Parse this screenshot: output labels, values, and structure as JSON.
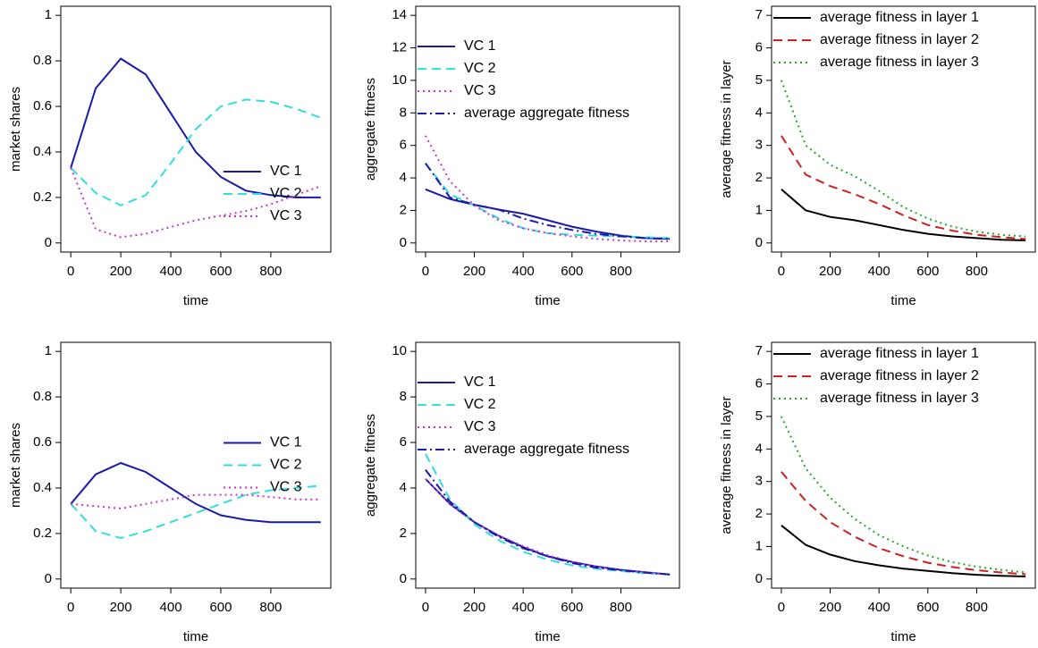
{
  "chart_data": [
    {
      "type": "line",
      "ylabel": "market shares",
      "xlabel": "time",
      "legend": "bottomright",
      "x": [
        0,
        100,
        200,
        300,
        400,
        500,
        600,
        700,
        800,
        900,
        1000
      ],
      "xlim": [
        -40,
        1040
      ],
      "xticks": [
        0,
        200,
        400,
        600,
        800
      ],
      "ylim": [
        -0.04,
        1.04
      ],
      "yticks": [
        0.0,
        0.2,
        0.4,
        0.6,
        0.8,
        1.0
      ],
      "series": [
        {
          "name": "VC 1",
          "color": "#1a1aaa",
          "linestyle": "solid",
          "values": [
            0.33,
            0.68,
            0.81,
            0.74,
            0.57,
            0.4,
            0.29,
            0.23,
            0.21,
            0.2,
            0.2
          ]
        },
        {
          "name": "VC 2",
          "color": "#33dddd",
          "linestyle": "dashed",
          "values": [
            0.33,
            0.22,
            0.165,
            0.21,
            0.35,
            0.5,
            0.6,
            0.63,
            0.62,
            0.59,
            0.55
          ]
        },
        {
          "name": "VC 3",
          "color": "#cc33cc",
          "linestyle": "dotted",
          "values": [
            0.33,
            0.06,
            0.025,
            0.04,
            0.07,
            0.1,
            0.12,
            0.14,
            0.17,
            0.21,
            0.25
          ]
        }
      ]
    },
    {
      "type": "line",
      "ylabel": "aggregate fitness",
      "xlabel": "time",
      "legend": "topleft",
      "x": [
        0,
        100,
        200,
        300,
        400,
        500,
        600,
        700,
        800,
        900,
        1000
      ],
      "xlim": [
        -40,
        1040
      ],
      "xticks": [
        0,
        200,
        400,
        600,
        800
      ],
      "ylim": [
        -0.56,
        14.56
      ],
      "yticks": [
        0,
        2,
        4,
        6,
        8,
        10,
        12,
        14
      ],
      "series": [
        {
          "name": "VC 1",
          "color": "#1a1aaa",
          "linestyle": "solid",
          "values": [
            3.3,
            2.7,
            2.35,
            2.05,
            1.8,
            1.4,
            1.0,
            0.7,
            0.45,
            0.3,
            0.25
          ]
        },
        {
          "name": "VC 2",
          "color": "#33dddd",
          "linestyle": "dashed",
          "values": [
            4.9,
            3.0,
            2.3,
            1.5,
            0.9,
            0.6,
            0.5,
            0.45,
            0.4,
            0.35,
            0.3
          ]
        },
        {
          "name": "VC 3",
          "color": "#cc33cc",
          "linestyle": "dotted",
          "values": [
            6.6,
            3.8,
            2.3,
            1.4,
            0.9,
            0.6,
            0.4,
            0.25,
            0.15,
            0.1,
            0.1
          ]
        },
        {
          "name": "average aggregate fitness",
          "color": "#1a1aaa",
          "linestyle": "dashdot",
          "values": [
            4.9,
            2.8,
            2.35,
            2.05,
            1.5,
            1.1,
            0.8,
            0.55,
            0.4,
            0.3,
            0.25
          ]
        }
      ]
    },
    {
      "type": "line",
      "ylabel": "average fitness in layer",
      "xlabel": "time",
      "legend": "topleft",
      "x": [
        0,
        100,
        200,
        300,
        400,
        500,
        600,
        700,
        800,
        900,
        1000
      ],
      "xlim": [
        -40,
        1040
      ],
      "xticks": [
        0,
        200,
        400,
        600,
        800
      ],
      "ylim": [
        -0.28,
        7.28
      ],
      "yticks": [
        0,
        1,
        2,
        3,
        4,
        5,
        6,
        7
      ],
      "series": [
        {
          "name": "average fitness in layer 1",
          "color": "#000000",
          "linestyle": "solid",
          "values": [
            1.65,
            1.0,
            0.8,
            0.7,
            0.55,
            0.4,
            0.28,
            0.2,
            0.15,
            0.1,
            0.08
          ]
        },
        {
          "name": "average fitness in layer 2",
          "color": "#cc2222",
          "linestyle": "dashed",
          "values": [
            3.3,
            2.1,
            1.75,
            1.5,
            1.2,
            0.85,
            0.55,
            0.38,
            0.25,
            0.18,
            0.12
          ]
        },
        {
          "name": "average fitness in layer 3",
          "color": "#22aa22",
          "linestyle": "dotted",
          "values": [
            5.0,
            3.0,
            2.4,
            2.05,
            1.6,
            1.1,
            0.75,
            0.5,
            0.35,
            0.25,
            0.2
          ]
        }
      ]
    },
    {
      "type": "line",
      "ylabel": "market shares",
      "xlabel": "time",
      "legend": "right",
      "x": [
        0,
        100,
        200,
        300,
        400,
        500,
        600,
        700,
        800,
        900,
        1000
      ],
      "xlim": [
        -40,
        1040
      ],
      "xticks": [
        0,
        200,
        400,
        600,
        800
      ],
      "ylim": [
        -0.04,
        1.04
      ],
      "yticks": [
        0.0,
        0.2,
        0.4,
        0.6,
        0.8,
        1.0
      ],
      "series": [
        {
          "name": "VC 1",
          "color": "#1a1aaa",
          "linestyle": "solid",
          "values": [
            0.33,
            0.46,
            0.51,
            0.47,
            0.4,
            0.33,
            0.28,
            0.26,
            0.25,
            0.25,
            0.25
          ]
        },
        {
          "name": "VC 2",
          "color": "#33dddd",
          "linestyle": "dashed",
          "values": [
            0.33,
            0.21,
            0.18,
            0.21,
            0.25,
            0.29,
            0.33,
            0.37,
            0.39,
            0.4,
            0.41
          ]
        },
        {
          "name": "VC 3",
          "color": "#cc33cc",
          "linestyle": "dotted",
          "values": [
            0.33,
            0.32,
            0.31,
            0.33,
            0.35,
            0.37,
            0.37,
            0.37,
            0.36,
            0.35,
            0.35
          ]
        }
      ]
    },
    {
      "type": "line",
      "ylabel": "aggregate fitness",
      "xlabel": "time",
      "legend": "topleft",
      "x": [
        0,
        100,
        200,
        300,
        400,
        500,
        600,
        700,
        800,
        900,
        1000
      ],
      "xlim": [
        -40,
        1040
      ],
      "xticks": [
        0,
        200,
        400,
        600,
        800
      ],
      "ylim": [
        -0.4,
        10.4
      ],
      "yticks": [
        0,
        2,
        4,
        6,
        8,
        10
      ],
      "series": [
        {
          "name": "VC 1",
          "color": "#1a1aaa",
          "linestyle": "solid",
          "values": [
            4.4,
            3.3,
            2.5,
            1.9,
            1.4,
            1.0,
            0.75,
            0.55,
            0.4,
            0.3,
            0.2
          ]
        },
        {
          "name": "VC 2",
          "color": "#33dddd",
          "linestyle": "dashed",
          "values": [
            5.5,
            3.5,
            2.4,
            1.7,
            1.2,
            0.85,
            0.6,
            0.45,
            0.35,
            0.25,
            0.2
          ]
        },
        {
          "name": "VC 3",
          "color": "#cc33cc",
          "linestyle": "dotted",
          "values": [
            4.4,
            3.3,
            2.5,
            1.9,
            1.45,
            1.05,
            0.75,
            0.55,
            0.4,
            0.3,
            0.2
          ]
        },
        {
          "name": "average aggregate fitness",
          "color": "#1a1aaa",
          "linestyle": "dashdot",
          "values": [
            4.8,
            3.4,
            2.5,
            1.85,
            1.35,
            1.0,
            0.7,
            0.5,
            0.38,
            0.28,
            0.2
          ]
        }
      ]
    },
    {
      "type": "line",
      "ylabel": "average fitness in layer",
      "xlabel": "time",
      "legend": "topleft",
      "x": [
        0,
        100,
        200,
        300,
        400,
        500,
        600,
        700,
        800,
        900,
        1000
      ],
      "xlim": [
        -40,
        1040
      ],
      "xticks": [
        0,
        200,
        400,
        600,
        800
      ],
      "ylim": [
        -0.28,
        7.28
      ],
      "yticks": [
        0,
        1,
        2,
        3,
        4,
        5,
        6,
        7
      ],
      "series": [
        {
          "name": "average fitness in layer 1",
          "color": "#000000",
          "linestyle": "solid",
          "values": [
            1.65,
            1.05,
            0.75,
            0.55,
            0.42,
            0.32,
            0.25,
            0.18,
            0.13,
            0.1,
            0.08
          ]
        },
        {
          "name": "average fitness in layer 2",
          "color": "#cc2222",
          "linestyle": "dashed",
          "values": [
            3.3,
            2.4,
            1.75,
            1.3,
            0.95,
            0.7,
            0.5,
            0.37,
            0.27,
            0.2,
            0.15
          ]
        },
        {
          "name": "average fitness in layer 3",
          "color": "#22aa22",
          "linestyle": "dotted",
          "values": [
            5.0,
            3.4,
            2.5,
            1.85,
            1.35,
            1.0,
            0.72,
            0.52,
            0.38,
            0.28,
            0.2
          ]
        }
      ]
    }
  ]
}
